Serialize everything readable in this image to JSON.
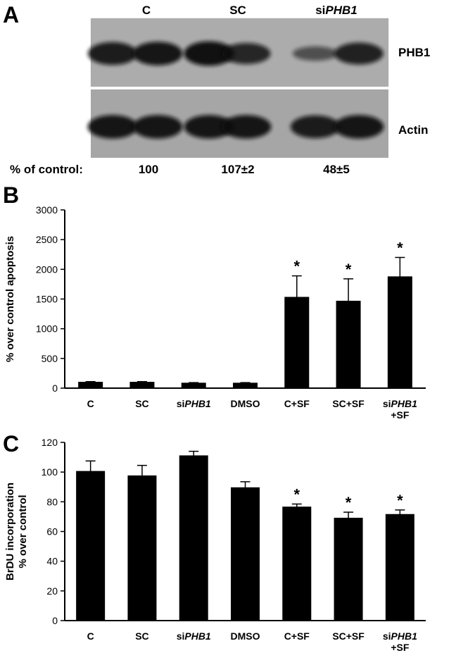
{
  "panel_a": {
    "letter": "A",
    "lanes": [
      {
        "prefix": "",
        "italic": "",
        "plain": "C"
      },
      {
        "prefix": "",
        "italic": "",
        "plain": "SC"
      },
      {
        "prefix": "si",
        "italic": "PHB1",
        "plain": ""
      }
    ],
    "band_labels": [
      "PHB1",
      "Actin"
    ],
    "row_label": "% of control:",
    "values": [
      "100",
      "107±2",
      "48±5"
    ],
    "band_intensity": [
      [
        0.85,
        0.9,
        0.95,
        0.75,
        0.35,
        0.8
      ],
      [
        0.9,
        0.9,
        0.9,
        0.9,
        0.85,
        0.9
      ]
    ]
  },
  "chart_data": [
    {
      "type": "bar",
      "panel": "B",
      "categories": [
        "C",
        "SC",
        "siPHB1",
        "DMSO",
        "C+SF",
        "SC+SF",
        "siPHB1 +SF"
      ],
      "category_labels": [
        {
          "prefix": "",
          "italic": "",
          "plain": "C",
          "line2": ""
        },
        {
          "prefix": "",
          "italic": "",
          "plain": "SC",
          "line2": ""
        },
        {
          "prefix": "si",
          "italic": "PHB1",
          "plain": "",
          "line2": ""
        },
        {
          "prefix": "",
          "italic": "",
          "plain": "DMSO",
          "line2": ""
        },
        {
          "prefix": "",
          "italic": "",
          "plain": "C+SF",
          "line2": ""
        },
        {
          "prefix": "",
          "italic": "",
          "plain": "SC+SF",
          "line2": ""
        },
        {
          "prefix": "si",
          "italic": "PHB1",
          "plain": "",
          "line2": "+SF"
        }
      ],
      "values": [
        100,
        100,
        85,
        85,
        1530,
        1465,
        1875
      ],
      "errors": [
        10,
        10,
        8,
        8,
        360,
        375,
        325
      ],
      "significant": [
        false,
        false,
        false,
        false,
        true,
        true,
        true
      ],
      "sig_marker": "*",
      "ylabel": "% over control apoptosis",
      "ylim": [
        0,
        3000
      ],
      "yticks": [
        0,
        500,
        1000,
        1500,
        2000,
        2500,
        3000
      ],
      "bar_color": "#000000"
    },
    {
      "type": "bar",
      "panel": "C",
      "categories": [
        "C",
        "SC",
        "siPHB1",
        "DMSO",
        "C+SF",
        "SC+SF",
        "siPHB1 +SF"
      ],
      "category_labels": [
        {
          "prefix": "",
          "italic": "",
          "plain": "C",
          "line2": ""
        },
        {
          "prefix": "",
          "italic": "",
          "plain": "SC",
          "line2": ""
        },
        {
          "prefix": "si",
          "italic": "PHB1",
          "plain": "",
          "line2": ""
        },
        {
          "prefix": "",
          "italic": "",
          "plain": "DMSO",
          "line2": ""
        },
        {
          "prefix": "",
          "italic": "",
          "plain": "C+SF",
          "line2": ""
        },
        {
          "prefix": "",
          "italic": "",
          "plain": "SC+SF",
          "line2": ""
        },
        {
          "prefix": "si",
          "italic": "PHB1",
          "plain": "",
          "line2": "+SF"
        }
      ],
      "values": [
        100.5,
        97.5,
        111,
        89.5,
        76.5,
        69,
        71.5
      ],
      "errors": [
        7,
        7,
        3,
        4,
        2,
        4,
        3
      ],
      "significant": [
        false,
        false,
        false,
        false,
        true,
        true,
        true
      ],
      "sig_marker": "*",
      "ylabel": [
        "BrDU incorporation",
        "% over control"
      ],
      "ylim": [
        0,
        120
      ],
      "yticks": [
        0,
        20,
        40,
        60,
        80,
        100,
        120
      ],
      "bar_color": "#000000"
    }
  ]
}
